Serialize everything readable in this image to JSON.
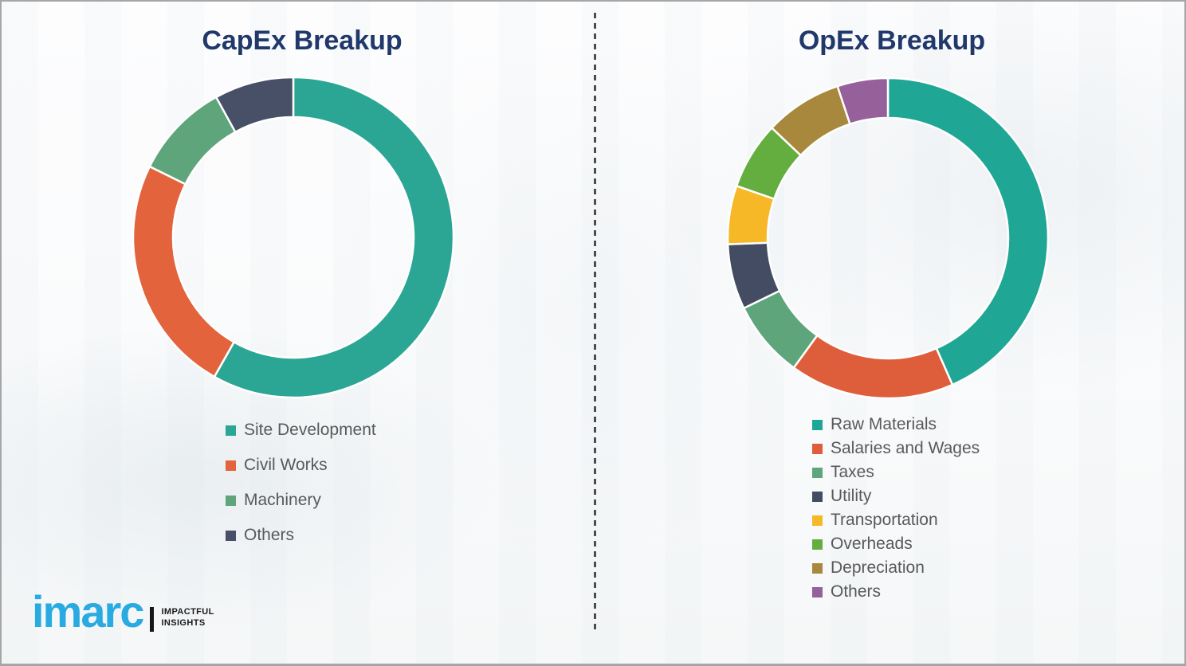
{
  "page": {
    "background": "#fbfcfd",
    "border_color": "#a6a6a6",
    "divider_color": "#4d4d4d",
    "title_color": "#21386B",
    "legend_text_color": "#595959"
  },
  "chart_data": [
    {
      "type": "pie",
      "subtype": "donut",
      "title": "CapEx Breakup",
      "legend_position": "below",
      "start_angle_deg": 0,
      "direction": "clockwise",
      "labels": [
        "Site Development",
        "Civil Works",
        "Machinery",
        "Others"
      ],
      "values": [
        58.2,
        24.1,
        9.7,
        8.0
      ],
      "colors": [
        "#2BA695",
        "#E2633C",
        "#5FA57C",
        "#485068"
      ]
    },
    {
      "type": "pie",
      "subtype": "donut",
      "title": "OpEx Breakup",
      "legend_position": "below",
      "start_angle_deg": 0,
      "direction": "clockwise",
      "labels": [
        "Raw Materials",
        "Salaries and Wages",
        "Taxes",
        "Utility",
        "Transportation",
        "Overheads",
        "Depreciation",
        "Others"
      ],
      "values": [
        43.4,
        16.6,
        7.8,
        6.6,
        5.9,
        6.8,
        7.8,
        5.1
      ],
      "colors": [
        "#1FA695",
        "#DE5E3B",
        "#5FA57C",
        "#444C63",
        "#F6B826",
        "#63AE3E",
        "#A8883C",
        "#96609B"
      ]
    }
  ],
  "logo": {
    "word": "imarc",
    "tagline_line1": "IMPACTFUL",
    "tagline_line2": "INSIGHTS",
    "brand_color": "#29ABE2"
  }
}
